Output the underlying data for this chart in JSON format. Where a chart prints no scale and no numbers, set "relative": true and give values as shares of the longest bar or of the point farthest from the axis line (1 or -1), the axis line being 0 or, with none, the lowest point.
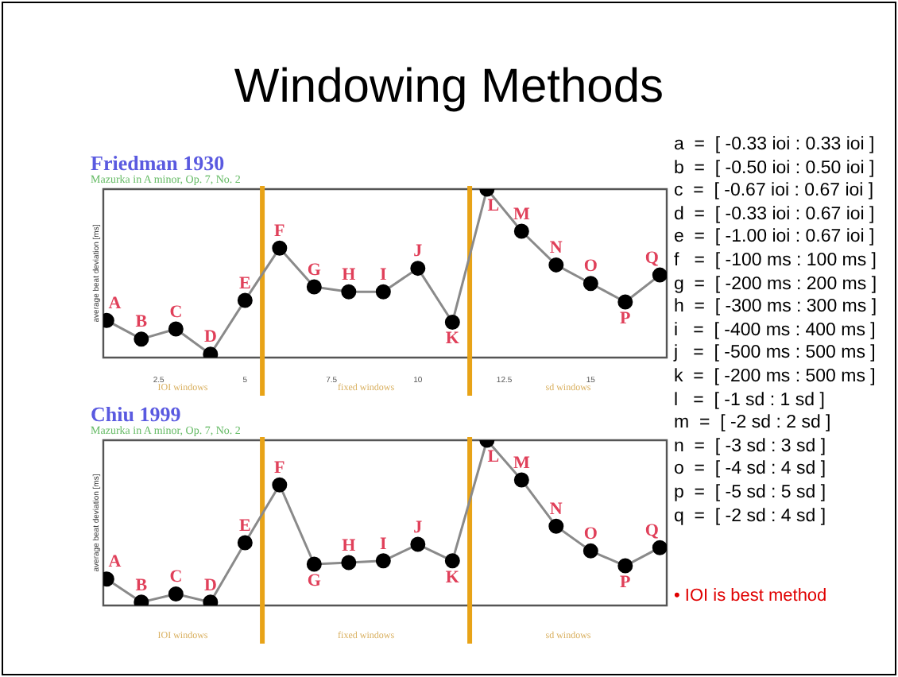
{
  "chart_data": [
    {
      "type": "line",
      "title": "Friedman 1930",
      "subtitle": "Mazurka in A minor, Op. 7, No. 2",
      "ylabel": "average beat deviation [ms]",
      "relative": true,
      "tick_labels": "x",
      "marker": "circle",
      "grid": false,
      "legend": false,
      "x": [
        1,
        2,
        3,
        4,
        5,
        6,
        7,
        8,
        9,
        10,
        11,
        12,
        13,
        14,
        15,
        16,
        17
      ],
      "xlim": [
        0.9,
        17.2
      ],
      "xticks": [
        2.5,
        5,
        7.5,
        10,
        12.5,
        15
      ],
      "series": [
        {
          "color": "#000000",
          "values": [
            0.22,
            0.11,
            0.17,
            0.02,
            0.34,
            0.65,
            0.42,
            0.39,
            0.39,
            0.53,
            0.21,
            1,
            0.75,
            0.55,
            0.44,
            0.33,
            0.49
          ]
        }
      ],
      "ref_lines": [
        {
          "axis": "x",
          "value": 5.5,
          "color": "#e8a317"
        },
        {
          "axis": "x",
          "value": 11.5,
          "color": "#e8a317"
        }
      ],
      "annotations": [
        {
          "text": "A",
          "x": 1,
          "y": 0.22
        },
        {
          "text": "B",
          "x": 2,
          "y": 0.11
        },
        {
          "text": "C",
          "x": 3,
          "y": 0.17
        },
        {
          "text": "D",
          "x": 4,
          "y": 0.02
        },
        {
          "text": "E",
          "x": 5,
          "y": 0.34
        },
        {
          "text": "F",
          "x": 6,
          "y": 0.65
        },
        {
          "text": "G",
          "x": 7,
          "y": 0.42
        },
        {
          "text": "H",
          "x": 8,
          "y": 0.39
        },
        {
          "text": "I",
          "x": 9,
          "y": 0.39
        },
        {
          "text": "J",
          "x": 10,
          "y": 0.53
        },
        {
          "text": "K",
          "x": 11,
          "y": 0.21
        },
        {
          "text": "L",
          "x": 12,
          "y": 1
        },
        {
          "text": "M",
          "x": 13,
          "y": 0.75
        },
        {
          "text": "N",
          "x": 14,
          "y": 0.55
        },
        {
          "text": "O",
          "x": 15,
          "y": 0.44
        },
        {
          "text": "P",
          "x": 16,
          "y": 0.33
        },
        {
          "text": "Q",
          "x": 17,
          "y": 0.49
        },
        "IOI windows",
        "fixed windows",
        "sd windows"
      ]
    },
    {
      "type": "line",
      "title": "Chiu 1999",
      "subtitle": "Mazurka in A minor, Op. 7, No. 2",
      "ylabel": "average beat deviation [ms]",
      "relative": true,
      "tick_labels": false,
      "marker": "circle",
      "grid": false,
      "legend": false,
      "x": [
        1,
        2,
        3,
        4,
        5,
        6,
        7,
        8,
        9,
        10,
        11,
        12,
        13,
        14,
        15,
        16,
        17
      ],
      "xlim": [
        0.9,
        17.2
      ],
      "series": [
        {
          "color": "#000000",
          "values": [
            0.16,
            0.02,
            0.07,
            0.02,
            0.38,
            0.73,
            0.25,
            0.26,
            0.27,
            0.37,
            0.27,
            1,
            0.76,
            0.48,
            0.33,
            0.24,
            0.35
          ]
        }
      ],
      "ref_lines": [
        {
          "axis": "x",
          "value": 5.5,
          "color": "#e8a317"
        },
        {
          "axis": "x",
          "value": 11.5,
          "color": "#e8a317"
        }
      ],
      "annotations": [
        {
          "text": "A",
          "x": 1,
          "y": 0.16
        },
        {
          "text": "B",
          "x": 2,
          "y": 0.02
        },
        {
          "text": "C",
          "x": 3,
          "y": 0.07
        },
        {
          "text": "D",
          "x": 4,
          "y": 0.02
        },
        {
          "text": "E",
          "x": 5,
          "y": 0.38
        },
        {
          "text": "F",
          "x": 6,
          "y": 0.73
        },
        {
          "text": "G",
          "x": 7,
          "y": 0.25
        },
        {
          "text": "H",
          "x": 8,
          "y": 0.26
        },
        {
          "text": "I",
          "x": 9,
          "y": 0.27
        },
        {
          "text": "J",
          "x": 10,
          "y": 0.37
        },
        {
          "text": "K",
          "x": 11,
          "y": 0.27
        },
        {
          "text": "L",
          "x": 12,
          "y": 1
        },
        {
          "text": "M",
          "x": 13,
          "y": 0.76
        },
        {
          "text": "N",
          "x": 14,
          "y": 0.48
        },
        {
          "text": "O",
          "x": 15,
          "y": 0.33
        },
        {
          "text": "P",
          "x": 16,
          "y": 0.24
        },
        {
          "text": "Q",
          "x": 17,
          "y": 0.35
        },
        "IOI windows",
        "fixed windows",
        "sd windows"
      ]
    },
    {
      "type": "other",
      "title": "Windowing Methods",
      "annotations": [
        "a  =  [ -0.33 ioi : 0.33 ioi ]",
        "b  =  [ -0.50 ioi : 0.50 ioi ]",
        "c  =  [ -0.67 ioi : 0.67 ioi ]",
        "d  =  [ -0.33 ioi : 0.67 ioi ]",
        "e  =  [ -1.00 ioi : 0.67 ioi ]",
        "f   =  [ -100 ms : 100 ms ]",
        "g  =  [ -200 ms : 200 ms ]",
        "h  =  [ -300 ms : 300 ms ]",
        "i   =  [ -400 ms : 400 ms ]",
        "j   =  [ -500 ms : 500 ms ]",
        "k  =  [ -200 ms : 500 ms ]",
        "l   =  [ -1 sd : 1 sd ]",
        "m  =  [ -2 sd : 2 sd ]",
        "n  =  [ -3 sd : 3 sd ]",
        "o  =  [ -4 sd : 4 sd ]",
        "p  =  [ -5 sd : 5 sd ]",
        "q  =  [ -2 sd : 4 sd ]",
        "• IOI is best method"
      ]
    }
  ]
}
